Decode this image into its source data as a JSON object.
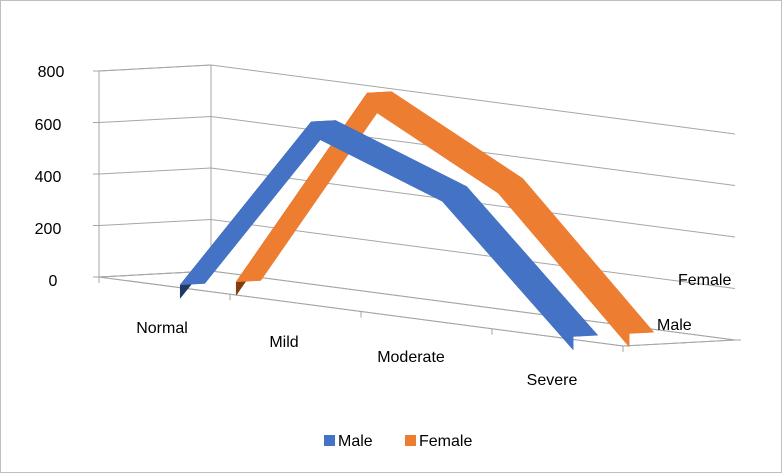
{
  "chart_data": {
    "type": "line",
    "style": "3d",
    "categories": [
      "Normal",
      "Mild",
      "Moderate",
      "Severe"
    ],
    "series": [
      {
        "name": "Male",
        "values": [
          0,
          700,
          510,
          0
        ],
        "color": "#4472c4",
        "dark_color": "#1f3864"
      },
      {
        "name": "Female",
        "values": [
          0,
          800,
          530,
          0
        ],
        "color": "#ed7d31",
        "dark_color": "#843c0c"
      }
    ],
    "depth_labels": [
      "Male",
      "Female"
    ],
    "y_ticks": [
      "0",
      "200",
      "400",
      "600",
      "800"
    ],
    "ylim": [
      0,
      800
    ],
    "grid": true,
    "legend": "bottom",
    "legend_labels": [
      "Male",
      "Female"
    ],
    "title": "",
    "xlabel": "",
    "ylabel": ""
  }
}
